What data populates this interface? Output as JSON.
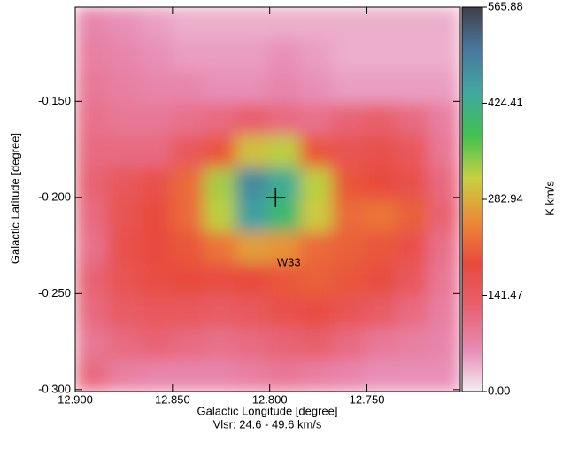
{
  "chart_data": {
    "type": "heatmap",
    "x_label": "Galactic Longitude [degree]",
    "subtitle": "Vlsr: 24.6 - 49.6 km/s",
    "y_label": "Galactic Latitude [degree]",
    "colorbar_label": "K km/s",
    "xlim": [
      12.9,
      12.702
    ],
    "ylim": [
      -0.301,
      -0.101
    ],
    "xticks": [
      {
        "value": 12.9,
        "label": "12.900"
      },
      {
        "value": 12.85,
        "label": "12.850"
      },
      {
        "value": 12.8,
        "label": "12.800"
      },
      {
        "value": 12.75,
        "label": "12.750"
      }
    ],
    "yticks": [
      {
        "value": -0.15,
        "label": "-0.150"
      },
      {
        "value": -0.2,
        "label": "-0.200"
      },
      {
        "value": -0.25,
        "label": "-0.250"
      },
      {
        "value": -0.3,
        "label": "-0.300"
      }
    ],
    "zlim": [
      0,
      565.88
    ],
    "zticks": [
      {
        "value": 0,
        "label": "0.00"
      },
      141.47,
      282.94,
      424.41,
      565.88
    ],
    "colormap": [
      "#f2eef2",
      "#e88ab4",
      "#e8606e",
      "#e84a3c",
      "#ec8a38",
      "#c8d040",
      "#40c050",
      "#40a8a0",
      "#4878a0",
      "#404048"
    ],
    "z": [
      [
        70,
        60,
        50,
        40,
        40,
        40,
        40,
        40,
        40,
        40,
        40,
        40
      ],
      [
        80,
        70,
        60,
        50,
        50,
        50,
        60,
        50,
        40,
        40,
        40,
        40
      ],
      [
        90,
        80,
        70,
        70,
        60,
        60,
        70,
        60,
        50,
        50,
        50,
        50
      ],
      [
        100,
        90,
        90,
        100,
        110,
        130,
        110,
        100,
        120,
        130,
        110,
        80
      ],
      [
        110,
        110,
        110,
        150,
        200,
        300,
        320,
        200,
        160,
        170,
        150,
        90
      ],
      [
        120,
        150,
        170,
        220,
        330,
        480,
        430,
        320,
        200,
        190,
        170,
        110
      ],
      [
        110,
        160,
        190,
        220,
        320,
        450,
        400,
        310,
        220,
        230,
        210,
        120
      ],
      [
        100,
        170,
        190,
        200,
        230,
        270,
        260,
        220,
        210,
        200,
        170,
        100
      ],
      [
        120,
        160,
        180,
        190,
        180,
        190,
        200,
        210,
        200,
        180,
        150,
        90
      ],
      [
        110,
        140,
        150,
        150,
        140,
        150,
        170,
        180,
        160,
        140,
        110,
        80
      ],
      [
        90,
        110,
        120,
        110,
        100,
        110,
        120,
        130,
        110,
        90,
        80,
        70
      ],
      [
        110,
        80,
        70,
        70,
        70,
        80,
        90,
        80,
        70,
        60,
        60,
        60
      ]
    ],
    "annotation": {
      "text": "W33",
      "x": 12.797,
      "y": -0.2
    }
  }
}
